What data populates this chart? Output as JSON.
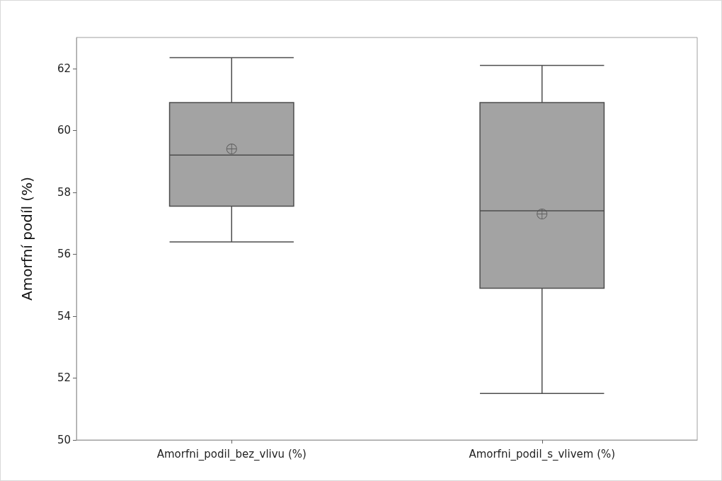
{
  "chart_data": {
    "type": "box",
    "ylabel": "Amorfní podíl (%)",
    "categories": [
      "Amorfni_podil_bez_vlivu (%)",
      "Amorfni_podil_s_vlivem (%)"
    ],
    "color": "#a3a3a3",
    "ylim": [
      50,
      63
    ],
    "yticks": [
      50,
      52,
      54,
      56,
      58,
      60,
      62
    ],
    "boxes": [
      {
        "low": 56.4,
        "q1": 57.55,
        "median": 59.2,
        "q3": 60.9,
        "high": 62.35,
        "mean": 59.4
      },
      {
        "low": 51.5,
        "q1": 54.9,
        "median": 57.4,
        "q3": 60.9,
        "high": 62.1,
        "mean": 57.3
      }
    ]
  }
}
